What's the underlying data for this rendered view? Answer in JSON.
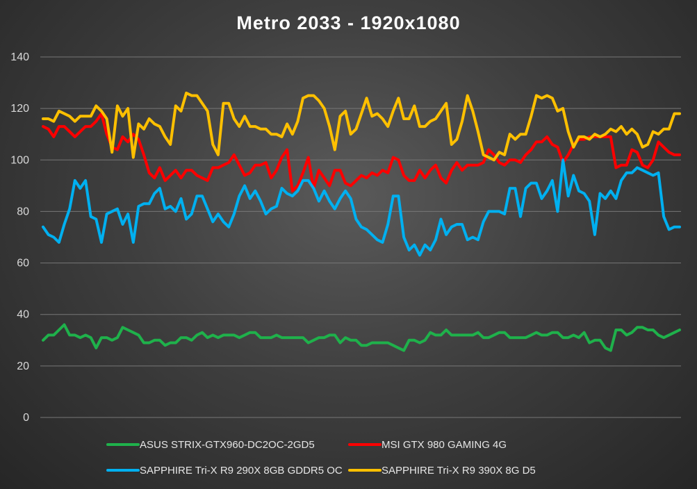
{
  "chart_data": {
    "type": "line",
    "title": "Metro 2033 - 1920x1080",
    "xlabel": "",
    "ylabel": "",
    "ylim": [
      0,
      140
    ],
    "yticks": [
      0,
      20,
      40,
      60,
      80,
      100,
      120,
      140
    ],
    "grid": true,
    "legend_position": "bottom",
    "series": [
      {
        "name": "ASUS STRIX-GTX960-DC2OC-2GD5",
        "color": "#1fb14b",
        "values": [
          30,
          32,
          32,
          34,
          36,
          32,
          32,
          31,
          32,
          31,
          27,
          31,
          31,
          30,
          31,
          35,
          34,
          33,
          32,
          29,
          29,
          30,
          30,
          28,
          29,
          29,
          31,
          31,
          30,
          32,
          33,
          31,
          32,
          31,
          32,
          32,
          32,
          31,
          32,
          33,
          33,
          31,
          31,
          31,
          32,
          31,
          31,
          31,
          31,
          31,
          29,
          30,
          31,
          31,
          32,
          32,
          29,
          31,
          30,
          30,
          28,
          28,
          29,
          29,
          29,
          29,
          28,
          27,
          26,
          30,
          30,
          29,
          30,
          33,
          32,
          32,
          34,
          32,
          32,
          32,
          32,
          32,
          33,
          31,
          31,
          32,
          33,
          33,
          31,
          31,
          31,
          31,
          32,
          33,
          32,
          32,
          33,
          33,
          31,
          31,
          32,
          31,
          33,
          29,
          30,
          30,
          27,
          26,
          34,
          34,
          32,
          33,
          35,
          35,
          34,
          34,
          32,
          31,
          32,
          33,
          34
        ]
      },
      {
        "name": "MSI GTX 980 GAMING 4G",
        "color": "#ff0000",
        "values": [
          113,
          112,
          109,
          113,
          113,
          111,
          109,
          111,
          113,
          113,
          115,
          118,
          110,
          105,
          104,
          109,
          107,
          110,
          108,
          102,
          95,
          93,
          97,
          92,
          94,
          96,
          93,
          96,
          96,
          94,
          93,
          92,
          97,
          97,
          98,
          99,
          102,
          98,
          94,
          95,
          98,
          98,
          99,
          93,
          96,
          101,
          104,
          88,
          90,
          95,
          101,
          89,
          96,
          93,
          90,
          96,
          96,
          91,
          90,
          92,
          94,
          93,
          95,
          94,
          96,
          95,
          101,
          100,
          94,
          92,
          92,
          96,
          93,
          96,
          98,
          93,
          91,
          96,
          99,
          96,
          98,
          98,
          98,
          99,
          104,
          102,
          99,
          98,
          100,
          100,
          99,
          102,
          104,
          107,
          107,
          109,
          106,
          105,
          99,
          102,
          106,
          108,
          108,
          109,
          109,
          109,
          109,
          109,
          97,
          98,
          98,
          104,
          103,
          98,
          97,
          100,
          107,
          105,
          103,
          102,
          102
        ]
      },
      {
        "name": "SAPPHIRE Tri-X R9 290X 8GB GDDR5 OC",
        "color": "#00b0f0",
        "values": [
          74,
          71,
          70,
          68,
          75,
          81,
          92,
          89,
          92,
          78,
          77,
          68,
          79,
          80,
          81,
          75,
          79,
          68,
          82,
          83,
          83,
          87,
          89,
          81,
          82,
          80,
          85,
          77,
          79,
          86,
          86,
          81,
          76,
          79,
          76,
          74,
          79,
          86,
          90,
          85,
          88,
          84,
          79,
          81,
          82,
          89,
          87,
          86,
          88,
          92,
          92,
          89,
          84,
          88,
          84,
          81,
          85,
          88,
          85,
          77,
          74,
          73,
          71,
          69,
          68,
          75,
          86,
          86,
          70,
          65,
          67,
          63,
          67,
          65,
          69,
          77,
          71,
          74,
          75,
          75,
          69,
          70,
          69,
          76,
          80,
          80,
          80,
          79,
          89,
          89,
          78,
          89,
          91,
          91,
          85,
          88,
          92,
          80,
          100,
          86,
          94,
          88,
          87,
          84,
          71,
          87,
          85,
          88,
          85,
          92,
          95,
          95,
          97,
          96,
          95,
          94,
          95,
          78,
          73,
          74,
          74
        ]
      },
      {
        "name": "SAPPHIRE Tri-X R9 390X 8G D5",
        "color": "#ffc000",
        "values": [
          116,
          116,
          115,
          119,
          118,
          117,
          115,
          117,
          117,
          117,
          121,
          119,
          116,
          103,
          121,
          117,
          120,
          101,
          114,
          112,
          116,
          114,
          113,
          109,
          106,
          121,
          119,
          126,
          125,
          125,
          122,
          119,
          106,
          102,
          122,
          122,
          116,
          113,
          117,
          113,
          113,
          112,
          112,
          110,
          110,
          109,
          114,
          110,
          115,
          124,
          125,
          125,
          123,
          120,
          113,
          104,
          117,
          119,
          110,
          112,
          118,
          124,
          117,
          118,
          116,
          113,
          119,
          124,
          116,
          116,
          121,
          113,
          113,
          115,
          116,
          119,
          122,
          106,
          108,
          115,
          125,
          119,
          111,
          102,
          101,
          100,
          103,
          102,
          110,
          108,
          110,
          110,
          117,
          125,
          124,
          125,
          124,
          119,
          120,
          111,
          105,
          109,
          109,
          108,
          110,
          109,
          110,
          112,
          111,
          113,
          110,
          112,
          110,
          105,
          106,
          111,
          110,
          112,
          112,
          118,
          118
        ]
      }
    ]
  }
}
